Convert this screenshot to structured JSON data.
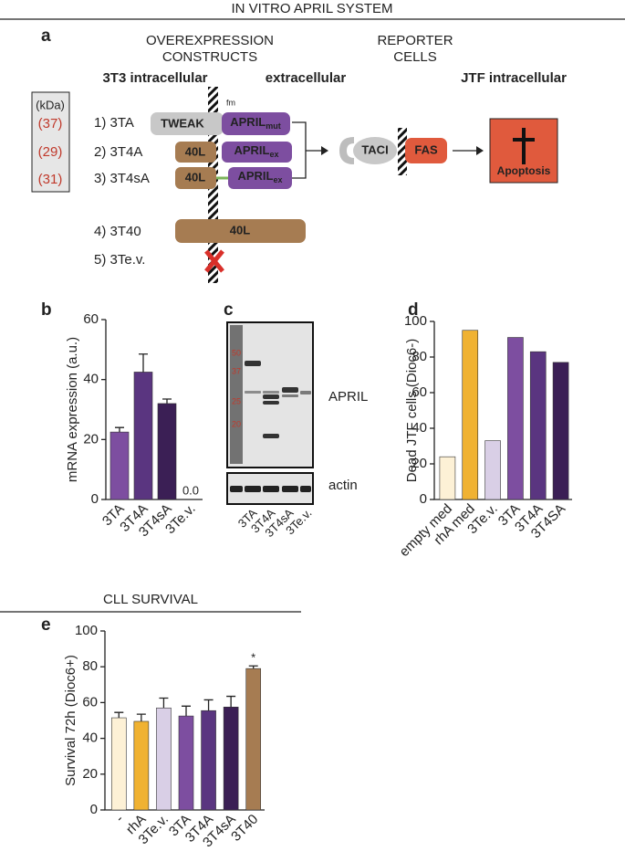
{
  "header": {
    "title": "IN VITRO APRIL SYSTEM"
  },
  "panel_a": {
    "label": "a",
    "constructs_title": [
      "OVEREXPRESSION",
      "CONSTRUCTS"
    ],
    "reporter_title": [
      "REPORTER",
      "CELLS"
    ],
    "left_heading": "3T3 intracellular",
    "mid_heading": "extracellular",
    "right_heading": "JTF intracellular",
    "kda_header": "(kDa)",
    "kda": [
      "(37)",
      "(29)",
      "(31)"
    ],
    "rows": [
      "1) 3TA",
      "2) 3T4A",
      "3) 3T4sA",
      "4) 3T40",
      "5) 3Te.v."
    ],
    "fm": "fm",
    "tweak": "TWEAK",
    "april_mut": {
      "text": "APRIL",
      "sub": "mut"
    },
    "april_ex": {
      "text": "APRIL",
      "sub": "ex"
    },
    "forty_l": "40L",
    "taci": "TACI",
    "fas": "FAS",
    "apoptosis": "Apoptosis"
  },
  "panel_c": {
    "label": "c",
    "ladder": [
      50,
      37,
      25,
      20
    ],
    "april": "APRIL",
    "actin": "actin",
    "lanes": [
      "3TA",
      "3T4A",
      "3T4sA",
      "3Te.v."
    ]
  },
  "chart_data": [
    {
      "type": "bar",
      "label": "b",
      "ylabel": "mRNA expression (a.u.)",
      "categories": [
        "3TA",
        "3T4A",
        "3T4sA",
        "3Te.v."
      ],
      "values": [
        22.5,
        42.5,
        32,
        0
      ],
      "errors": [
        1.5,
        6,
        1.5,
        null
      ],
      "value_labels": [
        null,
        null,
        null,
        "0.0"
      ],
      "colors": [
        "#7d4ea0",
        "#5a3580",
        "#3b1f55",
        "#3b1f55"
      ],
      "ylim": [
        0,
        60
      ],
      "yticks": [
        0,
        20,
        40,
        60
      ]
    },
    {
      "type": "bar",
      "label": "d",
      "ylabel": "Dead JTF cells (Dioc6-)",
      "categories": [
        "empty med",
        "rhA med",
        "3Te.v.",
        "3TA",
        "3T4A",
        "3T4SA"
      ],
      "values": [
        24,
        95,
        33,
        91,
        83,
        77
      ],
      "colors": [
        "#fdf1d6",
        "#f0b232",
        "#d9cfe6",
        "#7d4ea0",
        "#5a3580",
        "#3b1f55"
      ],
      "ylim": [
        0,
        100
      ],
      "yticks": [
        0,
        20,
        40,
        60,
        80,
        100
      ]
    },
    {
      "type": "bar",
      "label": "e",
      "title": "CLL SURVIVAL",
      "ylabel": "Survival 72h (Dioc6+)",
      "categories": [
        "-",
        "rhA",
        "3Te.v.",
        "3TA",
        "3T4A",
        "3T4sA",
        "3T40"
      ],
      "values": [
        51.5,
        49.5,
        57,
        52.5,
        55.5,
        57.5,
        79
      ],
      "errors": [
        3,
        4,
        5.5,
        5.5,
        6,
        6,
        1.5
      ],
      "annotation": "*",
      "colors": [
        "#fdf1d6",
        "#f0b232",
        "#d9cfe6",
        "#7d4ea0",
        "#5a3580",
        "#3b1f55",
        "#a67c52"
      ],
      "ylim": [
        0,
        100
      ],
      "yticks": [
        0,
        20,
        40,
        60,
        80,
        100
      ]
    }
  ]
}
